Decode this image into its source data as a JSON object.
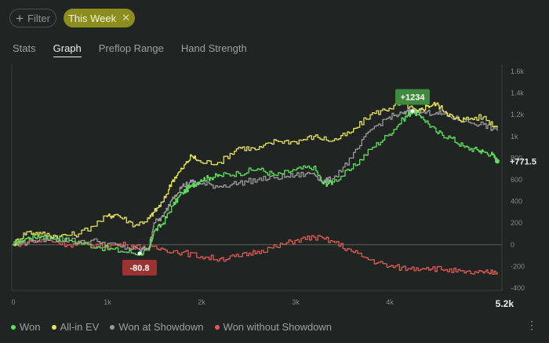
{
  "toolbar": {
    "filter_label": "Filter",
    "chip_label": "This Week"
  },
  "tabs": [
    {
      "label": "Stats"
    },
    {
      "label": "Graph"
    },
    {
      "label": "Preflop Range"
    },
    {
      "label": "Hand Strength"
    }
  ],
  "colors": {
    "won": "#5ee05a",
    "allin": "#e6e25a",
    "showdown": "#9a9a9a",
    "noshowdown": "#e05a52",
    "max_badge": "#3f8a3f",
    "min_badge": "#9c3333"
  },
  "chart_data": {
    "type": "line",
    "x_ticks": [
      "0",
      "1k",
      "2k",
      "3k",
      "4k",
      "5.2k"
    ],
    "y_ticks": [
      "1.6k",
      "1.4k",
      "1.2k",
      "1k",
      "800",
      "600",
      "400",
      "200",
      "0",
      "-200",
      "-400"
    ],
    "xlim": [
      0,
      5200
    ],
    "ylim": [
      -400,
      1600
    ],
    "series": [
      {
        "name": "Won",
        "color": "#5ee05a",
        "points": [
          [
            0,
            0
          ],
          [
            150,
            60
          ],
          [
            300,
            80
          ],
          [
            600,
            40
          ],
          [
            900,
            -20
          ],
          [
            1150,
            -60
          ],
          [
            1350,
            -80.8
          ],
          [
            1450,
            -50
          ],
          [
            1500,
            120
          ],
          [
            1600,
            200
          ],
          [
            1700,
            360
          ],
          [
            1800,
            480
          ],
          [
            1900,
            540
          ],
          [
            2000,
            600
          ],
          [
            2100,
            620
          ],
          [
            2200,
            640
          ],
          [
            2400,
            660
          ],
          [
            2600,
            700
          ],
          [
            2800,
            640
          ],
          [
            3000,
            690
          ],
          [
            3200,
            720
          ],
          [
            3300,
            560
          ],
          [
            3400,
            580
          ],
          [
            3600,
            700
          ],
          [
            3800,
            880
          ],
          [
            4000,
            1020
          ],
          [
            4150,
            1160
          ],
          [
            4250,
            1234
          ],
          [
            4350,
            1180
          ],
          [
            4500,
            1040
          ],
          [
            4650,
            990
          ],
          [
            4800,
            900
          ],
          [
            4950,
            870
          ],
          [
            5000,
            860
          ],
          [
            5100,
            830
          ],
          [
            5150,
            771.5
          ]
        ]
      },
      {
        "name": "All-in EV",
        "color": "#e6e25a",
        "points": [
          [
            0,
            0
          ],
          [
            150,
            120
          ],
          [
            300,
            100
          ],
          [
            500,
            80
          ],
          [
            700,
            100
          ],
          [
            1000,
            260
          ],
          [
            1100,
            280
          ],
          [
            1300,
            180
          ],
          [
            1450,
            240
          ],
          [
            1500,
            300
          ],
          [
            1600,
            400
          ],
          [
            1700,
            600
          ],
          [
            1800,
            700
          ],
          [
            1900,
            820
          ],
          [
            2000,
            760
          ],
          [
            2200,
            760
          ],
          [
            2400,
            900
          ],
          [
            2600,
            880
          ],
          [
            2800,
            960
          ],
          [
            3000,
            950
          ],
          [
            3200,
            1000
          ],
          [
            3400,
            960
          ],
          [
            3600,
            1040
          ],
          [
            3800,
            1200
          ],
          [
            4000,
            1260
          ],
          [
            4150,
            1310
          ],
          [
            4300,
            1220
          ],
          [
            4400,
            1280
          ],
          [
            4500,
            1300
          ],
          [
            4600,
            1230
          ],
          [
            4700,
            1160
          ],
          [
            4800,
            1160
          ],
          [
            5000,
            1180
          ],
          [
            5150,
            1080
          ]
        ]
      },
      {
        "name": "Won at Showdown",
        "color": "#9a9a9a",
        "points": [
          [
            0,
            0
          ],
          [
            200,
            40
          ],
          [
            400,
            60
          ],
          [
            600,
            40
          ],
          [
            900,
            30
          ],
          [
            1150,
            -20
          ],
          [
            1350,
            -50
          ],
          [
            1450,
            -20
          ],
          [
            1500,
            200
          ],
          [
            1600,
            260
          ],
          [
            1700,
            440
          ],
          [
            1800,
            540
          ],
          [
            1900,
            580
          ],
          [
            2000,
            560
          ],
          [
            2200,
            540
          ],
          [
            2400,
            570
          ],
          [
            2600,
            600
          ],
          [
            2800,
            620
          ],
          [
            3000,
            640
          ],
          [
            3200,
            660
          ],
          [
            3300,
            580
          ],
          [
            3400,
            610
          ],
          [
            3600,
            800
          ],
          [
            3800,
            1060
          ],
          [
            4000,
            1180
          ],
          [
            4150,
            1210
          ],
          [
            4250,
            1234
          ],
          [
            4350,
            1220
          ],
          [
            4500,
            1220
          ],
          [
            4650,
            1180
          ],
          [
            4800,
            1140
          ],
          [
            5000,
            1110
          ],
          [
            5150,
            1050
          ]
        ]
      },
      {
        "name": "Won without Showdown",
        "color": "#e05a52",
        "points": [
          [
            0,
            0
          ],
          [
            200,
            30
          ],
          [
            400,
            40
          ],
          [
            600,
            0
          ],
          [
            800,
            0
          ],
          [
            1000,
            -10
          ],
          [
            1200,
            0
          ],
          [
            1400,
            -30
          ],
          [
            1600,
            -40
          ],
          [
            1800,
            -70
          ],
          [
            2000,
            -110
          ],
          [
            2200,
            -130
          ],
          [
            2400,
            -110
          ],
          [
            2600,
            -60
          ],
          [
            2800,
            -20
          ],
          [
            3000,
            40
          ],
          [
            3200,
            70
          ],
          [
            3400,
            30
          ],
          [
            3600,
            -60
          ],
          [
            3800,
            -140
          ],
          [
            4000,
            -200
          ],
          [
            4200,
            -220
          ],
          [
            4400,
            -210
          ],
          [
            4600,
            -230
          ],
          [
            4800,
            -260
          ],
          [
            5000,
            -260
          ],
          [
            5150,
            -250
          ]
        ]
      }
    ],
    "annotations": [
      {
        "label": "+1234",
        "x": 4250,
        "y": 1234,
        "kind": "max"
      },
      {
        "label": "-80.8",
        "x": 1350,
        "y": -80.8,
        "kind": "min"
      }
    ],
    "end_label": "+771.5",
    "end_value": 771.5,
    "end_x": 5150
  },
  "legend": [
    {
      "label": "Won",
      "color": "#5ee05a"
    },
    {
      "label": "All-in EV",
      "color": "#e6e25a"
    },
    {
      "label": "Won at Showdown",
      "color": "#9a9a9a"
    },
    {
      "label": "Won without Showdown",
      "color": "#e05a52"
    }
  ],
  "more_icon": "more-vertical-icon"
}
